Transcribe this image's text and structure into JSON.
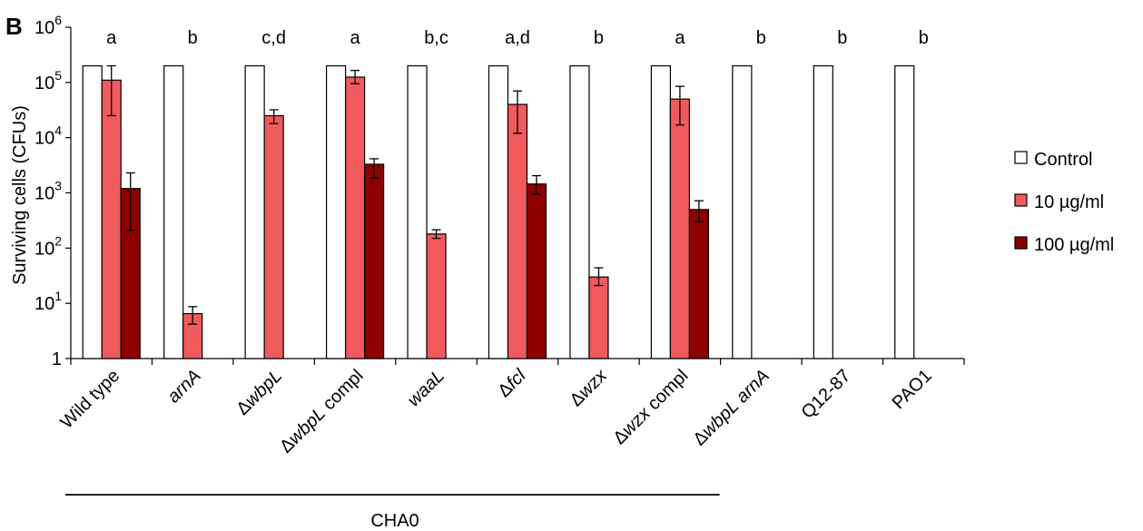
{
  "panel_label": "B",
  "chart_data": {
    "type": "bar",
    "yscale": "log",
    "ylabel": "Surviving cells (CFUs)",
    "ylim": [
      1,
      1000000
    ],
    "y_ticks": [
      {
        "value": 1,
        "base": "1",
        "exp": ""
      },
      {
        "value": 10,
        "base": "10",
        "exp": "1"
      },
      {
        "value": 100,
        "base": "10",
        "exp": "2"
      },
      {
        "value": 1000,
        "base": "10",
        "exp": "3"
      },
      {
        "value": 10000,
        "base": "10",
        "exp": "4"
      },
      {
        "value": 100000,
        "base": "10",
        "exp": "5"
      },
      {
        "value": 1000000,
        "base": "10",
        "exp": "6"
      }
    ],
    "categories": [
      {
        "parts": [
          {
            "text": "Wild type",
            "italic": false
          }
        ]
      },
      {
        "parts": [
          {
            "text": "arnA",
            "italic": true
          }
        ]
      },
      {
        "parts": [
          {
            "text": "Δ",
            "italic": false
          },
          {
            "text": "wbpL",
            "italic": true
          }
        ]
      },
      {
        "parts": [
          {
            "text": "Δ",
            "italic": false
          },
          {
            "text": "wbpL",
            "italic": true
          },
          {
            "text": " compl",
            "italic": false
          }
        ]
      },
      {
        "parts": [
          {
            "text": "waaL",
            "italic": true
          }
        ]
      },
      {
        "parts": [
          {
            "text": "Δ",
            "italic": false
          },
          {
            "text": "fcl",
            "italic": true
          }
        ]
      },
      {
        "parts": [
          {
            "text": "Δ",
            "italic": false
          },
          {
            "text": "wzx",
            "italic": true
          }
        ]
      },
      {
        "parts": [
          {
            "text": "Δ",
            "italic": false
          },
          {
            "text": "wzx",
            "italic": true
          },
          {
            "text": " compl",
            "italic": false
          }
        ]
      },
      {
        "parts": [
          {
            "text": "Δ",
            "italic": false
          },
          {
            "text": "wbpL arnA",
            "italic": true
          }
        ]
      },
      {
        "parts": [
          {
            "text": "Q12-87",
            "italic": false
          }
        ]
      },
      {
        "parts": [
          {
            "text": "PAO1",
            "italic": false
          }
        ]
      }
    ],
    "significance_letters": [
      "a",
      "b",
      "c,d",
      "a",
      "b,c",
      "a,d",
      "b",
      "a",
      "b",
      "b",
      "b"
    ],
    "series": [
      {
        "name": "Control",
        "color": "#ffffff",
        "stroke": "#000000",
        "values": [
          200000,
          200000,
          200000,
          200000,
          200000,
          200000,
          200000,
          200000,
          200000,
          200000,
          200000
        ],
        "err_low": [
          null,
          null,
          null,
          null,
          null,
          null,
          null,
          null,
          null,
          null,
          null
        ],
        "err_high": [
          null,
          null,
          null,
          null,
          null,
          null,
          null,
          null,
          null,
          null,
          null
        ]
      },
      {
        "name": "10 µg/ml",
        "color": "#f05a5c",
        "stroke": "#000000",
        "values": [
          110000,
          6.5,
          25000,
          125000,
          180,
          40000,
          30,
          50000,
          null,
          null,
          null
        ],
        "err_low": [
          25000,
          4.2,
          18000,
          95000,
          150,
          12000,
          21,
          17000,
          null,
          null,
          null
        ],
        "err_high": [
          200000,
          8.7,
          32000,
          165000,
          215,
          70000,
          44,
          85000,
          null,
          null,
          null
        ]
      },
      {
        "name": "100 µg/ml",
        "color": "#8c0000",
        "stroke": "#000000",
        "values": [
          1200,
          null,
          null,
          3300,
          null,
          1450,
          null,
          500,
          null,
          null,
          null
        ],
        "err_low": [
          210,
          null,
          null,
          1850,
          null,
          950,
          null,
          300,
          null,
          null,
          null
        ],
        "err_high": [
          2300,
          null,
          null,
          4150,
          null,
          2050,
          null,
          720,
          null,
          null,
          null
        ]
      }
    ],
    "legend_position": "right",
    "group_label": "CHA0",
    "group_span": [
      0,
      7
    ],
    "grid": false
  }
}
